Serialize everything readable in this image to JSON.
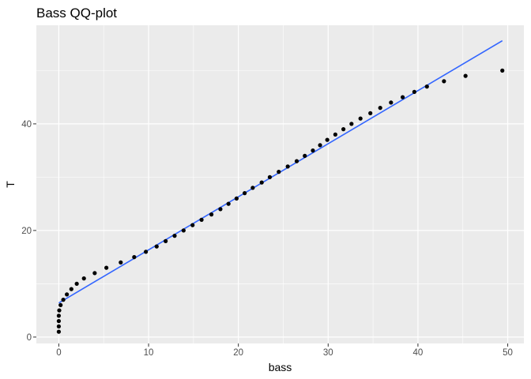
{
  "chart_data": {
    "type": "scatter",
    "title": "Bass QQ-plot",
    "xlabel": "bass",
    "ylabel": "T",
    "xlim": [
      -2.5,
      51.8
    ],
    "ylim": [
      -1.2,
      58.5
    ],
    "x_ticks": [
      0,
      10,
      20,
      30,
      40,
      50
    ],
    "y_ticks": [
      0,
      20,
      40
    ],
    "x_tick_labels": [
      "0",
      "10",
      "20",
      "30",
      "40",
      "50"
    ],
    "y_tick_labels": [
      "0",
      "20",
      "40"
    ],
    "grid": true,
    "background": "#ebebeb",
    "point_color": "#000000",
    "line_color": "#3366ff",
    "points": [
      {
        "x": 0.0,
        "y": 1
      },
      {
        "x": 0.0,
        "y": 2
      },
      {
        "x": 0.0,
        "y": 3
      },
      {
        "x": 0.0,
        "y": 4
      },
      {
        "x": 0.05,
        "y": 5
      },
      {
        "x": 0.2,
        "y": 6
      },
      {
        "x": 0.5,
        "y": 7
      },
      {
        "x": 0.9,
        "y": 8
      },
      {
        "x": 1.4,
        "y": 9
      },
      {
        "x": 2.0,
        "y": 10
      },
      {
        "x": 2.8,
        "y": 11
      },
      {
        "x": 4.0,
        "y": 12
      },
      {
        "x": 5.3,
        "y": 13
      },
      {
        "x": 6.9,
        "y": 14
      },
      {
        "x": 8.4,
        "y": 15
      },
      {
        "x": 9.7,
        "y": 16
      },
      {
        "x": 10.9,
        "y": 17
      },
      {
        "x": 11.9,
        "y": 18
      },
      {
        "x": 12.9,
        "y": 19
      },
      {
        "x": 13.9,
        "y": 20
      },
      {
        "x": 14.9,
        "y": 21
      },
      {
        "x": 15.9,
        "y": 22
      },
      {
        "x": 17.0,
        "y": 23
      },
      {
        "x": 18.0,
        "y": 24
      },
      {
        "x": 18.9,
        "y": 25
      },
      {
        "x": 19.8,
        "y": 26
      },
      {
        "x": 20.7,
        "y": 27
      },
      {
        "x": 21.6,
        "y": 28
      },
      {
        "x": 22.6,
        "y": 29
      },
      {
        "x": 23.5,
        "y": 30
      },
      {
        "x": 24.5,
        "y": 31
      },
      {
        "x": 25.5,
        "y": 32
      },
      {
        "x": 26.5,
        "y": 33
      },
      {
        "x": 27.4,
        "y": 34
      },
      {
        "x": 28.3,
        "y": 35
      },
      {
        "x": 29.1,
        "y": 36
      },
      {
        "x": 29.9,
        "y": 37
      },
      {
        "x": 30.8,
        "y": 38
      },
      {
        "x": 31.7,
        "y": 39
      },
      {
        "x": 32.6,
        "y": 40
      },
      {
        "x": 33.6,
        "y": 41
      },
      {
        "x": 34.7,
        "y": 42
      },
      {
        "x": 35.8,
        "y": 43
      },
      {
        "x": 37.0,
        "y": 44
      },
      {
        "x": 38.3,
        "y": 45
      },
      {
        "x": 39.6,
        "y": 46
      },
      {
        "x": 41.0,
        "y": 47
      },
      {
        "x": 42.9,
        "y": 48
      },
      {
        "x": 45.3,
        "y": 49
      },
      {
        "x": 49.4,
        "y": 50
      }
    ],
    "fit_line": [
      {
        "x": 0.0,
        "y": 6.4
      },
      {
        "x": 49.4,
        "y": 55.6
      }
    ]
  }
}
